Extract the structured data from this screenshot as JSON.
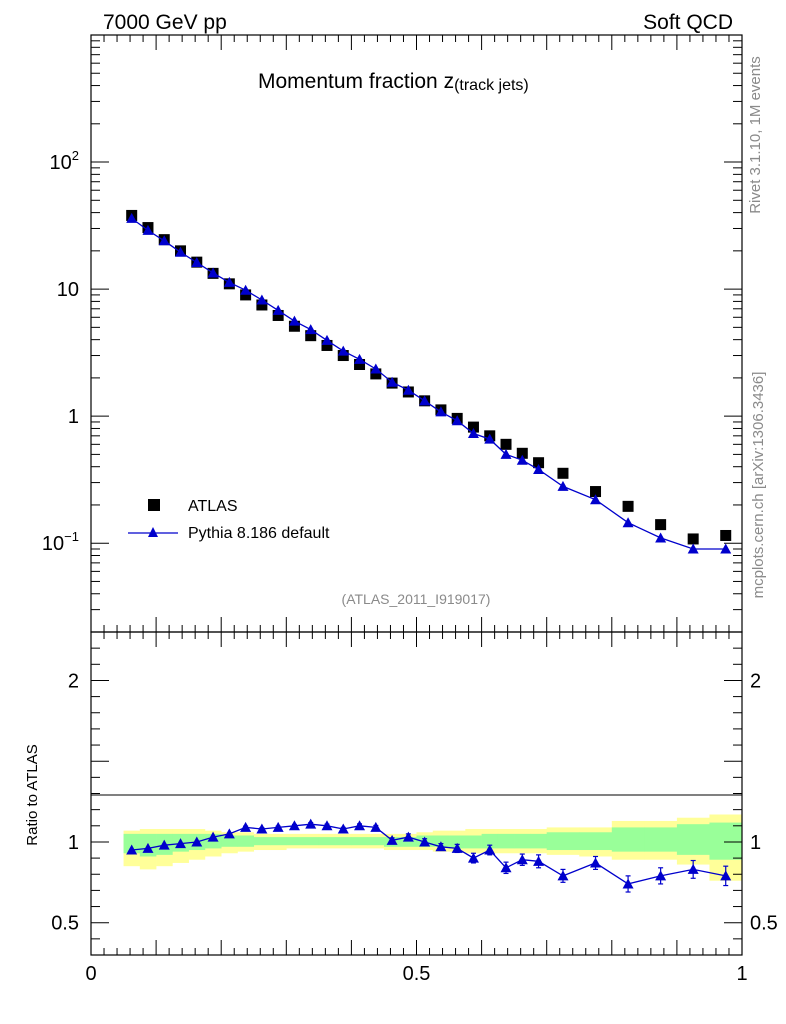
{
  "header": {
    "left": "7000 GeV pp",
    "right": "Soft QCD"
  },
  "side": {
    "rivet": "Rivet 3.1.10,  1M events",
    "mcplots": "mcplots.cern.ch [arXiv:1306.3436]"
  },
  "chart_data": {
    "type": "scatter",
    "title": "Momentum fraction z",
    "title_sub": "(track jets)",
    "analysis_id": "(ATLAS_2011_I919017)",
    "xlim": [
      0,
      1
    ],
    "ylim_main": [
      0.02,
      1000
    ],
    "yscale_main": "log",
    "ylim_ratio": [
      0.3,
      2.3
    ],
    "ylabel_ratio": "Ratio to ATLAS",
    "x_tick_labels": [
      "0",
      "0.5",
      "1"
    ],
    "y_tick_labels_main": [
      {
        "value": 0.1,
        "base": "10",
        "exp": "−1"
      },
      {
        "value": 1,
        "base": "1",
        "exp": ""
      },
      {
        "value": 10,
        "base": "10",
        "exp": ""
      },
      {
        "value": 100,
        "base": "10",
        "exp": "2"
      }
    ],
    "y_tick_labels_ratio": [
      {
        "value": 0.5,
        "label": "0.5"
      },
      {
        "value": 1,
        "label": "1"
      },
      {
        "value": 2,
        "label": "2"
      }
    ],
    "legend": {
      "position": "bottom-left",
      "entries": [
        "ATLAS",
        "Pythia 8.186 default"
      ]
    },
    "x": [
      0.0625,
      0.0875,
      0.1125,
      0.1375,
      0.1625,
      0.1875,
      0.2125,
      0.2375,
      0.2625,
      0.2875,
      0.3125,
      0.3375,
      0.3625,
      0.3875,
      0.4125,
      0.4375,
      0.4625,
      0.4875,
      0.5125,
      0.5375,
      0.5625,
      0.5875,
      0.6125,
      0.6375,
      0.6625,
      0.6875,
      0.725,
      0.775,
      0.825,
      0.875,
      0.925,
      0.975
    ],
    "bin_edges": [
      0.05,
      0.075,
      0.1,
      0.125,
      0.15,
      0.175,
      0.2,
      0.225,
      0.25,
      0.275,
      0.3,
      0.325,
      0.35,
      0.375,
      0.4,
      0.425,
      0.45,
      0.475,
      0.5,
      0.525,
      0.55,
      0.575,
      0.6,
      0.625,
      0.65,
      0.675,
      0.7,
      0.75,
      0.8,
      0.85,
      0.9,
      0.95,
      1.0
    ],
    "series": [
      {
        "name": "ATLAS",
        "marker": "square",
        "color": "#000000",
        "values": [
          38,
          30.5,
          24.5,
          20,
          16.3,
          13.3,
          11,
          9,
          7.5,
          6.2,
          5.1,
          4.3,
          3.6,
          3.0,
          2.55,
          2.15,
          1.82,
          1.55,
          1.32,
          1.12,
          0.96,
          0.82,
          0.7,
          0.6,
          0.51,
          0.43,
          0.355,
          0.255,
          0.195,
          0.14,
          0.108,
          0.115
        ]
      },
      {
        "name": "Pythia 8.186 default",
        "marker": "triangle",
        "color": "#0000cc",
        "values": [
          36,
          29,
          24,
          19.5,
          16.2,
          13.4,
          11.3,
          9.8,
          8.2,
          6.8,
          5.6,
          4.8,
          3.95,
          3.25,
          2.8,
          2.35,
          1.85,
          1.6,
          1.32,
          1.08,
          0.92,
          0.73,
          0.66,
          0.5,
          0.45,
          0.38,
          0.28,
          0.22,
          0.145,
          0.11,
          0.09,
          0.09
        ]
      }
    ],
    "ratio": {
      "values": [
        0.95,
        0.96,
        0.98,
        0.99,
        1.0,
        1.03,
        1.05,
        1.09,
        1.08,
        1.09,
        1.1,
        1.11,
        1.1,
        1.08,
        1.1,
        1.09,
        1.01,
        1.03,
        1.0,
        0.97,
        0.96,
        0.9,
        0.95,
        0.84,
        0.89,
        0.88,
        0.79,
        0.87,
        0.74,
        0.79,
        0.83,
        0.79
      ],
      "errors": [
        0.005,
        0.005,
        0.005,
        0.005,
        0.005,
        0.005,
        0.005,
        0.008,
        0.008,
        0.008,
        0.008,
        0.01,
        0.01,
        0.01,
        0.012,
        0.012,
        0.015,
        0.02,
        0.02,
        0.02,
        0.025,
        0.03,
        0.03,
        0.035,
        0.035,
        0.04,
        0.04,
        0.04,
        0.05,
        0.05,
        0.055,
        0.06
      ],
      "band_inner": [
        [
          0.93,
          1.05
        ],
        [
          0.91,
          1.05
        ],
        [
          0.92,
          1.05
        ],
        [
          0.94,
          1.05
        ],
        [
          0.95,
          1.05
        ],
        [
          0.96,
          1.05
        ],
        [
          0.97,
          1.04
        ],
        [
          0.97,
          1.04
        ],
        [
          0.98,
          1.03
        ],
        [
          0.98,
          1.03
        ],
        [
          0.98,
          1.03
        ],
        [
          0.98,
          1.03
        ],
        [
          0.98,
          1.03
        ],
        [
          0.98,
          1.03
        ],
        [
          0.98,
          1.03
        ],
        [
          0.98,
          1.03
        ],
        [
          0.97,
          1.03
        ],
        [
          0.97,
          1.03
        ],
        [
          0.97,
          1.04
        ],
        [
          0.97,
          1.04
        ],
        [
          0.96,
          1.04
        ],
        [
          0.96,
          1.04
        ],
        [
          0.96,
          1.05
        ],
        [
          0.96,
          1.05
        ],
        [
          0.96,
          1.05
        ],
        [
          0.96,
          1.05
        ],
        [
          0.95,
          1.06
        ],
        [
          0.95,
          1.06
        ],
        [
          0.94,
          1.09
        ],
        [
          0.94,
          1.09
        ],
        [
          0.92,
          1.11
        ],
        [
          0.89,
          1.12
        ]
      ],
      "band_outer": [
        [
          0.85,
          1.07
        ],
        [
          0.83,
          1.08
        ],
        [
          0.85,
          1.08
        ],
        [
          0.87,
          1.08
        ],
        [
          0.89,
          1.08
        ],
        [
          0.91,
          1.07
        ],
        [
          0.93,
          1.06
        ],
        [
          0.94,
          1.06
        ],
        [
          0.95,
          1.05
        ],
        [
          0.95,
          1.05
        ],
        [
          0.96,
          1.05
        ],
        [
          0.96,
          1.05
        ],
        [
          0.96,
          1.05
        ],
        [
          0.96,
          1.05
        ],
        [
          0.96,
          1.05
        ],
        [
          0.96,
          1.05
        ],
        [
          0.95,
          1.05
        ],
        [
          0.95,
          1.05
        ],
        [
          0.95,
          1.06
        ],
        [
          0.94,
          1.07
        ],
        [
          0.94,
          1.07
        ],
        [
          0.93,
          1.08
        ],
        [
          0.93,
          1.08
        ],
        [
          0.93,
          1.08
        ],
        [
          0.93,
          1.08
        ],
        [
          0.93,
          1.08
        ],
        [
          0.92,
          1.09
        ],
        [
          0.91,
          1.09
        ],
        [
          0.89,
          1.13
        ],
        [
          0.89,
          1.13
        ],
        [
          0.86,
          1.15
        ],
        [
          0.76,
          1.17
        ]
      ]
    },
    "colors": {
      "data": "#000000",
      "mc": "#0000cc",
      "band_inner": "#99ff99",
      "band_outer": "#ffff99"
    }
  }
}
